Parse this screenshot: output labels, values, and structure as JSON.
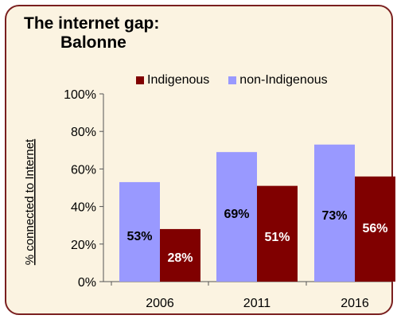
{
  "chart_data": {
    "type": "bar",
    "title_line1": "The internet gap:",
    "title_line2": "Balonne",
    "ylabel": "% connected to Internet",
    "xlabel": "",
    "categories": [
      "2006",
      "2011",
      "2016"
    ],
    "ylim": [
      0,
      100
    ],
    "yticks": [
      "0%",
      "20%",
      "40%",
      "60%",
      "80%",
      "100%"
    ],
    "series": [
      {
        "name": "non-Indigenous",
        "values": [
          53,
          69,
          73
        ],
        "labels": [
          "53%",
          "69%",
          "73%"
        ],
        "color": "#9999ff"
      },
      {
        "name": "Indigenous",
        "values": [
          28,
          51,
          56
        ],
        "labels": [
          "28%",
          "51%",
          "56%"
        ],
        "color": "#800000"
      }
    ],
    "legend": [
      "Indigenous",
      "non-Indigenous"
    ],
    "legend_position": "top",
    "grid": false
  },
  "colors": {
    "background": "#fbf3e1",
    "border": "#7a1f1f",
    "indigenous": "#800000",
    "non_indigenous": "#9999ff"
  }
}
